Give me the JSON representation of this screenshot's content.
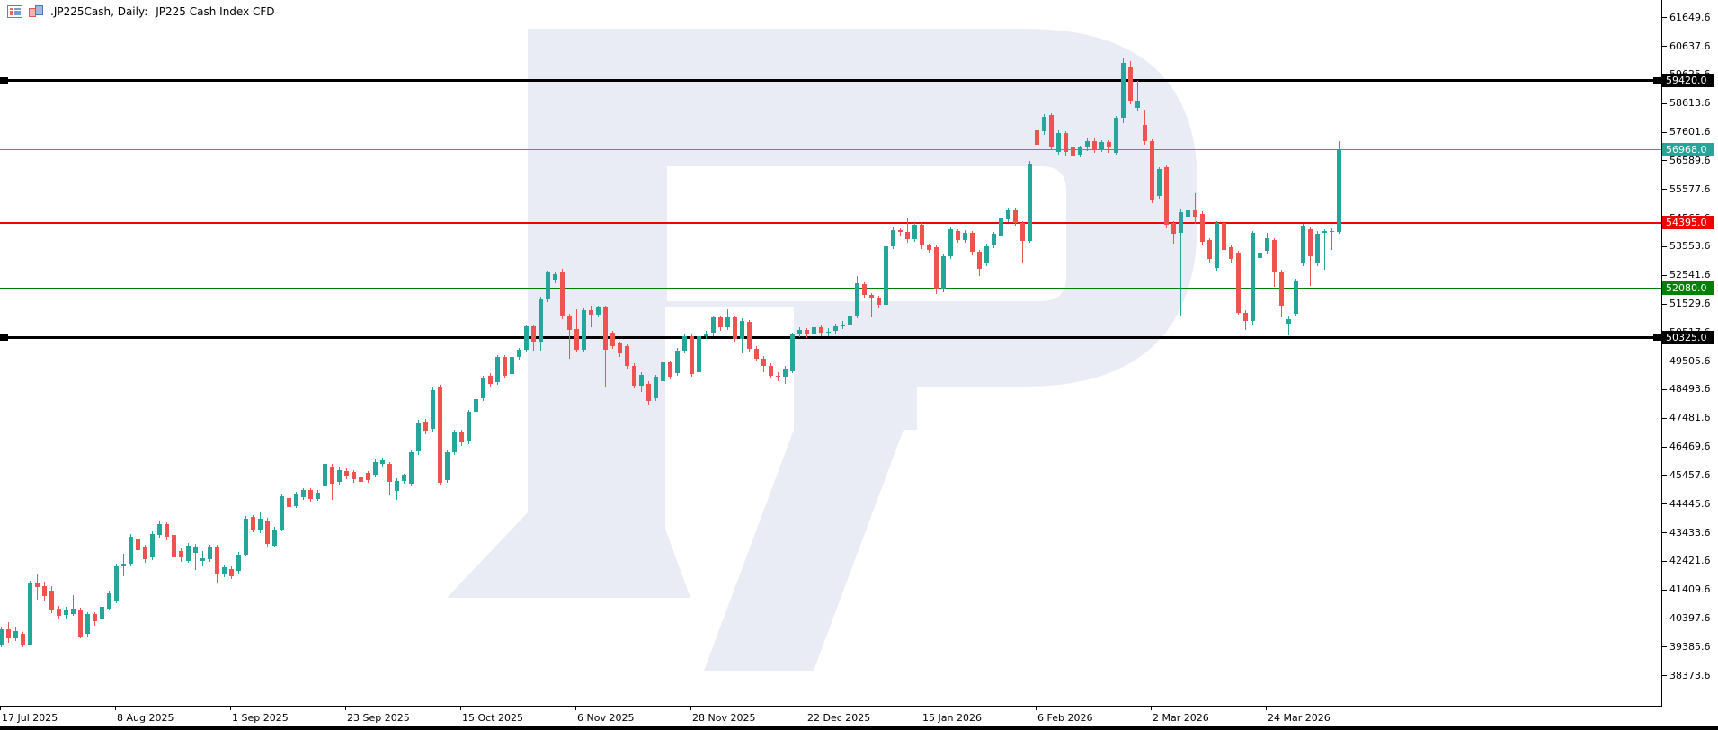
{
  "window": {
    "title_symbol": ".JP225Cash, Daily:",
    "title_description": "JP225 Cash Index CFD",
    "title_icons": [
      "charts-list-icon",
      "chart-window-icon"
    ]
  },
  "colors": {
    "up_candle": "#26a69a",
    "down_candle": "#ef5350",
    "watermark": "#e9ecf5",
    "axis_text": "#000000",
    "background": "#ffffff"
  },
  "chart_data": {
    "type": "candlestick",
    "title": ".JP225Cash, Daily: JP225 Cash Index CFD",
    "symbol": ".JP225Cash",
    "timeframe": "Daily",
    "legend_position": "none",
    "grid": false,
    "current_price": 56968.0,
    "y_axis": {
      "tick_step": 1012.0,
      "labels": [
        61649.6,
        60637.6,
        59625.6,
        58613.6,
        57601.6,
        56589.6,
        55577.6,
        54565.6,
        53553.6,
        52541.6,
        51529.6,
        50517.6,
        49505.6,
        48493.6,
        47481.6,
        46469.6,
        45457.6,
        44445.6,
        43433.6,
        42421.6,
        41409.6,
        40397.6,
        39385.6,
        38373.6
      ]
    },
    "x_axis": {
      "labels": [
        "17 Jul 2025",
        "8 Aug 2025",
        "1 Sep 2025",
        "23 Sep 2025",
        "15 Oct 2025",
        "6 Nov 2025",
        "28 Nov 2025",
        "22 Dec 2025",
        "15 Jan 2026",
        "6 Feb 2026",
        "2 Mar 2026",
        "24 Mar 2026"
      ],
      "bars_per_tick": 16
    },
    "hlines": [
      {
        "price": 59420.0,
        "label": "59420.0",
        "color": "#000000",
        "thickness": 3,
        "endpoint_markers": true
      },
      {
        "price": 56968.0,
        "label": "56968.0",
        "color": "#26a69a",
        "thickness": 1,
        "endpoint_markers": false
      },
      {
        "price": 54395.0,
        "label": "54395.0",
        "color": "#f20000",
        "thickness": 2,
        "endpoint_markers": false
      },
      {
        "price": 52080.0,
        "label": "52080.0",
        "color": "#008000",
        "thickness": 2,
        "endpoint_markers": false
      },
      {
        "price": 50325.0,
        "label": "50325.0",
        "color": "#000000",
        "thickness": 3,
        "endpoint_markers": true
      }
    ],
    "candles_ohlc": [
      [
        39440,
        40100,
        39400,
        40020
      ],
      [
        40020,
        40270,
        39550,
        39700
      ],
      [
        39700,
        40100,
        39600,
        39970
      ],
      [
        39860,
        39940,
        39400,
        39490
      ],
      [
        39490,
        41740,
        39450,
        41660
      ],
      [
        41660,
        41990,
        41080,
        41530
      ],
      [
        41550,
        41700,
        41050,
        41190
      ],
      [
        41400,
        41560,
        40600,
        40720
      ],
      [
        40760,
        40840,
        40380,
        40500
      ],
      [
        40520,
        40800,
        40400,
        40710
      ],
      [
        40550,
        41230,
        40500,
        40760
      ],
      [
        40710,
        40780,
        39700,
        39760
      ],
      [
        39860,
        40640,
        39750,
        40550
      ],
      [
        40550,
        40620,
        40150,
        40320
      ],
      [
        40390,
        40900,
        40310,
        40815
      ],
      [
        40760,
        41380,
        40700,
        41290
      ],
      [
        41030,
        42330,
        40950,
        42245
      ],
      [
        42250,
        42700,
        41900,
        42350
      ],
      [
        42350,
        43380,
        42250,
        43300
      ],
      [
        43195,
        43300,
        42700,
        42825
      ],
      [
        42930,
        43000,
        42380,
        42500
      ],
      [
        42560,
        43480,
        42480,
        43400
      ],
      [
        43360,
        43830,
        43260,
        43725
      ],
      [
        43725,
        43800,
        43180,
        43290
      ],
      [
        43355,
        43430,
        42450,
        42560
      ],
      [
        42775,
        42870,
        42400,
        42560
      ],
      [
        42450,
        43070,
        42370,
        42985
      ],
      [
        42730,
        43030,
        42130,
        42950
      ],
      [
        42430,
        42780,
        42250,
        42540
      ],
      [
        42500,
        43000,
        42400,
        42930
      ],
      [
        42930,
        43000,
        41680,
        41980
      ],
      [
        41950,
        42300,
        41850,
        42200
      ],
      [
        42150,
        42250,
        41800,
        41900
      ],
      [
        42080,
        42740,
        41980,
        42660
      ],
      [
        42660,
        44020,
        42600,
        43935
      ],
      [
        43990,
        44060,
        43450,
        43565
      ],
      [
        43510,
        44150,
        43420,
        43935
      ],
      [
        43880,
        43950,
        42950,
        43040
      ],
      [
        42985,
        43650,
        42900,
        43565
      ],
      [
        43565,
        44800,
        43500,
        44720
      ],
      [
        44670,
        44750,
        44250,
        44360
      ],
      [
        44390,
        44880,
        44300,
        44800
      ],
      [
        44680,
        45020,
        44600,
        44940
      ],
      [
        44940,
        45000,
        44520,
        44620
      ],
      [
        44640,
        44940,
        44560,
        44850
      ],
      [
        45070,
        45940,
        44980,
        45860
      ],
      [
        45790,
        45860,
        44590,
        45180
      ],
      [
        45230,
        45730,
        45140,
        45650
      ],
      [
        45620,
        45700,
        45320,
        45470
      ],
      [
        45600,
        45660,
        45200,
        45330
      ],
      [
        45380,
        45450,
        45080,
        45230
      ],
      [
        45560,
        45620,
        45200,
        45310
      ],
      [
        45490,
        46020,
        45400,
        45940
      ],
      [
        45860,
        46080,
        45760,
        45990
      ],
      [
        45860,
        45930,
        44750,
        45230
      ],
      [
        44930,
        45350,
        44590,
        45280
      ],
      [
        45280,
        45530,
        45180,
        45480
      ],
      [
        45160,
        46350,
        45080,
        46270
      ],
      [
        46300,
        47420,
        46200,
        47330
      ],
      [
        47380,
        47460,
        46920,
        47050
      ],
      [
        47100,
        48560,
        47020,
        48480
      ],
      [
        48560,
        48670,
        45120,
        45190
      ],
      [
        45300,
        46350,
        45200,
        46270
      ],
      [
        46280,
        47080,
        46180,
        47000
      ],
      [
        47000,
        47080,
        46500,
        46620
      ],
      [
        46650,
        47780,
        46560,
        47700
      ],
      [
        47710,
        48230,
        47620,
        48150
      ],
      [
        48200,
        48980,
        48100,
        48900
      ],
      [
        49000,
        49080,
        48580,
        48700
      ],
      [
        48750,
        49730,
        48660,
        49650
      ],
      [
        49650,
        49730,
        48920,
        49000
      ],
      [
        49050,
        49740,
        48960,
        49660
      ],
      [
        49660,
        49980,
        49560,
        49900
      ],
      [
        49900,
        50810,
        49820,
        50730
      ],
      [
        50730,
        50800,
        49880,
        50200
      ],
      [
        50200,
        51770,
        49880,
        51690
      ],
      [
        51690,
        52720,
        51590,
        52640
      ],
      [
        52350,
        52660,
        52260,
        52580
      ],
      [
        52680,
        52760,
        51000,
        51090
      ],
      [
        51090,
        51170,
        49600,
        50600
      ],
      [
        50650,
        51350,
        49820,
        49900
      ],
      [
        49900,
        51380,
        49820,
        51300
      ],
      [
        51300,
        51480,
        50700,
        51140
      ],
      [
        51150,
        51480,
        51050,
        51400
      ],
      [
        51400,
        51470,
        48600,
        49900
      ],
      [
        50500,
        50580,
        49930,
        50030
      ],
      [
        50130,
        50200,
        49650,
        49770
      ],
      [
        50030,
        50100,
        49240,
        49340
      ],
      [
        49340,
        49420,
        48550,
        48650
      ],
      [
        48650,
        49110,
        48400,
        49030
      ],
      [
        48710,
        48780,
        47980,
        48100
      ],
      [
        48180,
        49030,
        48080,
        48950
      ],
      [
        48810,
        49530,
        48710,
        49450
      ],
      [
        49450,
        49520,
        48850,
        48950
      ],
      [
        49080,
        49960,
        48990,
        49880
      ],
      [
        49880,
        50480,
        49780,
        50400
      ],
      [
        50400,
        50470,
        48950,
        49050
      ],
      [
        49100,
        50480,
        49000,
        50400
      ],
      [
        50400,
        50590,
        50280,
        50480
      ],
      [
        50500,
        51130,
        50400,
        51050
      ],
      [
        51050,
        51120,
        50580,
        50700
      ],
      [
        50700,
        51350,
        50600,
        51050
      ],
      [
        51050,
        51120,
        50180,
        50300
      ],
      [
        50300,
        51020,
        49770,
        50940
      ],
      [
        50880,
        50950,
        49850,
        49950
      ],
      [
        49950,
        50020,
        49480,
        49600
      ],
      [
        49600,
        49680,
        49100,
        49350
      ],
      [
        49350,
        49420,
        48900,
        49000
      ],
      [
        49000,
        49120,
        48800,
        48950
      ],
      [
        48950,
        49330,
        48700,
        49250
      ],
      [
        49160,
        50520,
        49080,
        50440
      ],
      [
        50450,
        50690,
        50350,
        50600
      ],
      [
        50600,
        50670,
        50330,
        50450
      ],
      [
        50450,
        50780,
        50350,
        50700
      ],
      [
        50700,
        50770,
        50380,
        50500
      ],
      [
        50500,
        50680,
        50400,
        50560
      ],
      [
        50560,
        50830,
        50460,
        50750
      ],
      [
        50750,
        50920,
        50650,
        50810
      ],
      [
        50810,
        51180,
        50710,
        51100
      ],
      [
        51100,
        52530,
        51020,
        52260
      ],
      [
        52230,
        52300,
        51730,
        51850
      ],
      [
        51850,
        51920,
        51050,
        51750
      ],
      [
        51750,
        51820,
        51380,
        51500
      ],
      [
        51500,
        53640,
        51420,
        53560
      ],
      [
        53560,
        54220,
        53460,
        54140
      ],
      [
        54140,
        54210,
        53940,
        54060
      ],
      [
        54060,
        54580,
        53690,
        53810
      ],
      [
        53810,
        54400,
        53710,
        54320
      ],
      [
        54320,
        54390,
        53480,
        53600
      ],
      [
        53600,
        53670,
        53330,
        53450
      ],
      [
        53530,
        53600,
        51880,
        52030
      ],
      [
        52030,
        53310,
        51950,
        53230
      ],
      [
        53230,
        54240,
        53130,
        54160
      ],
      [
        54100,
        54170,
        53680,
        53800
      ],
      [
        53800,
        54130,
        53700,
        54050
      ],
      [
        54050,
        54120,
        53250,
        53370
      ],
      [
        53370,
        53440,
        52510,
        52760
      ],
      [
        52950,
        53650,
        52850,
        53570
      ],
      [
        53600,
        54080,
        53500,
        54000
      ],
      [
        53940,
        54660,
        53840,
        54580
      ],
      [
        54530,
        54930,
        54430,
        54850
      ],
      [
        54850,
        54920,
        54280,
        54400
      ],
      [
        54400,
        54470,
        52950,
        53760
      ],
      [
        53760,
        56580,
        53680,
        56500
      ],
      [
        57650,
        58620,
        57030,
        57150
      ],
      [
        57620,
        58230,
        57520,
        58150
      ],
      [
        58200,
        58270,
        56980,
        57100
      ],
      [
        56900,
        57650,
        56800,
        57570
      ],
      [
        57570,
        57640,
        56780,
        56900
      ],
      [
        57090,
        57160,
        56630,
        56750
      ],
      [
        56800,
        57130,
        56700,
        57050
      ],
      [
        57050,
        57380,
        56950,
        57300
      ],
      [
        57300,
        57370,
        56880,
        57000
      ],
      [
        57000,
        57330,
        56900,
        57250
      ],
      [
        57250,
        57320,
        56880,
        57100
      ],
      [
        56880,
        58180,
        56800,
        58100
      ],
      [
        58100,
        60210,
        57920,
        60040
      ],
      [
        59910,
        60100,
        58580,
        58700
      ],
      [
        58450,
        59410,
        58350,
        58710
      ],
      [
        57870,
        58390,
        57170,
        57290
      ],
      [
        57290,
        57360,
        55080,
        55180
      ],
      [
        55340,
        56370,
        55240,
        56290
      ],
      [
        56350,
        56420,
        54200,
        54320
      ],
      [
        54390,
        54460,
        53660,
        54000
      ],
      [
        54040,
        54900,
        51090,
        54780
      ],
      [
        54610,
        55790,
        54510,
        54840
      ],
      [
        54840,
        55440,
        54350,
        54610
      ],
      [
        54710,
        54790,
        53600,
        53720
      ],
      [
        53780,
        53860,
        52990,
        53110
      ],
      [
        52810,
        54470,
        52710,
        54390
      ],
      [
        54390,
        55000,
        53320,
        53440
      ],
      [
        53540,
        53620,
        52990,
        53110
      ],
      [
        53330,
        53410,
        51140,
        51220
      ],
      [
        51220,
        51300,
        50610,
        50930
      ],
      [
        50930,
        54120,
        50770,
        54040
      ],
      [
        53150,
        53410,
        51670,
        53330
      ],
      [
        53390,
        54040,
        53290,
        53840
      ],
      [
        53780,
        53860,
        52130,
        52680
      ],
      [
        52650,
        52730,
        51050,
        51480
      ],
      [
        50830,
        51070,
        50420,
        50990
      ],
      [
        51170,
        52410,
        51070,
        52330
      ],
      [
        52950,
        54360,
        52850,
        54280
      ],
      [
        54170,
        54250,
        52180,
        53210
      ],
      [
        52970,
        54090,
        52870,
        54010
      ],
      [
        54050,
        54180,
        52740,
        54100
      ],
      [
        54060,
        54190,
        53450,
        54120
      ],
      [
        54080,
        57280,
        54000,
        56968
      ]
    ]
  },
  "watermark": {
    "letter": "R",
    "brand_color": "#e9ecf5"
  }
}
